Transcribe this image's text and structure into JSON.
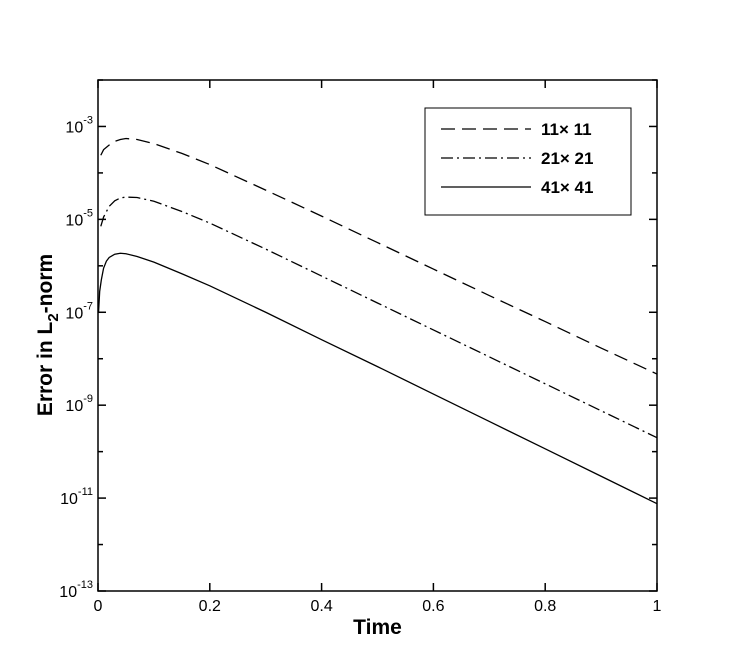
{
  "chart_data": {
    "type": "line",
    "title": "",
    "xlabel": "Time",
    "ylabel": {
      "prefix": "Error in L",
      "subscript": "2",
      "suffix": "-norm"
    },
    "xlim": [
      0,
      1
    ],
    "ylim_log10": [
      -13,
      -2
    ],
    "y_scale": "log",
    "grid": false,
    "legend_placement": "top-right",
    "x_ticks": [
      {
        "value": 0,
        "label": "0"
      },
      {
        "value": 0.2,
        "label": "0.2"
      },
      {
        "value": 0.4,
        "label": "0.4"
      },
      {
        "value": 0.6,
        "label": "0.6"
      },
      {
        "value": 0.8,
        "label": "0.8"
      },
      {
        "value": 1,
        "label": "1"
      }
    ],
    "y_ticks": [
      {
        "exp": -13,
        "base": "10",
        "sup": "-13"
      },
      {
        "exp": -11,
        "base": "10",
        "sup": "-11"
      },
      {
        "exp": -9,
        "base": "10",
        "sup": "-9"
      },
      {
        "exp": -7,
        "base": "10",
        "sup": "-7"
      },
      {
        "exp": -5,
        "base": "10",
        "sup": "-5"
      },
      {
        "exp": -3,
        "base": "10",
        "sup": "-3"
      }
    ],
    "series": [
      {
        "name": "11× 11",
        "dash": "dashed",
        "color": "#000000",
        "x": [
          0.005,
          0.01,
          0.02,
          0.03,
          0.04,
          0.05,
          0.07,
          0.1,
          0.15,
          0.2,
          0.3,
          0.4,
          0.5,
          0.6,
          0.7,
          0.8,
          0.9,
          1.0
        ],
        "log10_y": [
          -3.62,
          -3.5,
          -3.4,
          -3.32,
          -3.28,
          -3.26,
          -3.28,
          -3.37,
          -3.58,
          -3.82,
          -4.37,
          -4.93,
          -5.5,
          -6.07,
          -6.64,
          -7.2,
          -7.77,
          -8.33
        ]
      },
      {
        "name": "21× 21",
        "dash": "dashdot",
        "color": "#000000",
        "x": [
          0.005,
          0.01,
          0.02,
          0.03,
          0.04,
          0.05,
          0.07,
          0.1,
          0.15,
          0.2,
          0.3,
          0.4,
          0.5,
          0.6,
          0.7,
          0.8,
          0.9,
          1.0
        ],
        "log10_y": [
          -5.15,
          -4.95,
          -4.72,
          -4.6,
          -4.54,
          -4.52,
          -4.53,
          -4.61,
          -4.83,
          -5.08,
          -5.64,
          -6.22,
          -6.8,
          -7.38,
          -7.96,
          -8.54,
          -9.12,
          -9.7
        ]
      },
      {
        "name": "41× 41",
        "dash": "solid",
        "color": "#000000",
        "x": [
          0.001,
          0.003,
          0.006,
          0.01,
          0.015,
          0.02,
          0.03,
          0.04,
          0.05,
          0.07,
          0.1,
          0.15,
          0.2,
          0.3,
          0.4,
          0.5,
          0.6,
          0.7,
          0.8,
          0.9,
          1.0
        ],
        "log10_y": [
          -7.0,
          -6.55,
          -6.3,
          -6.05,
          -5.9,
          -5.82,
          -5.75,
          -5.73,
          -5.74,
          -5.8,
          -5.92,
          -6.17,
          -6.43,
          -7.0,
          -7.59,
          -8.17,
          -8.76,
          -9.35,
          -9.94,
          -10.53,
          -11.12
        ]
      }
    ]
  }
}
